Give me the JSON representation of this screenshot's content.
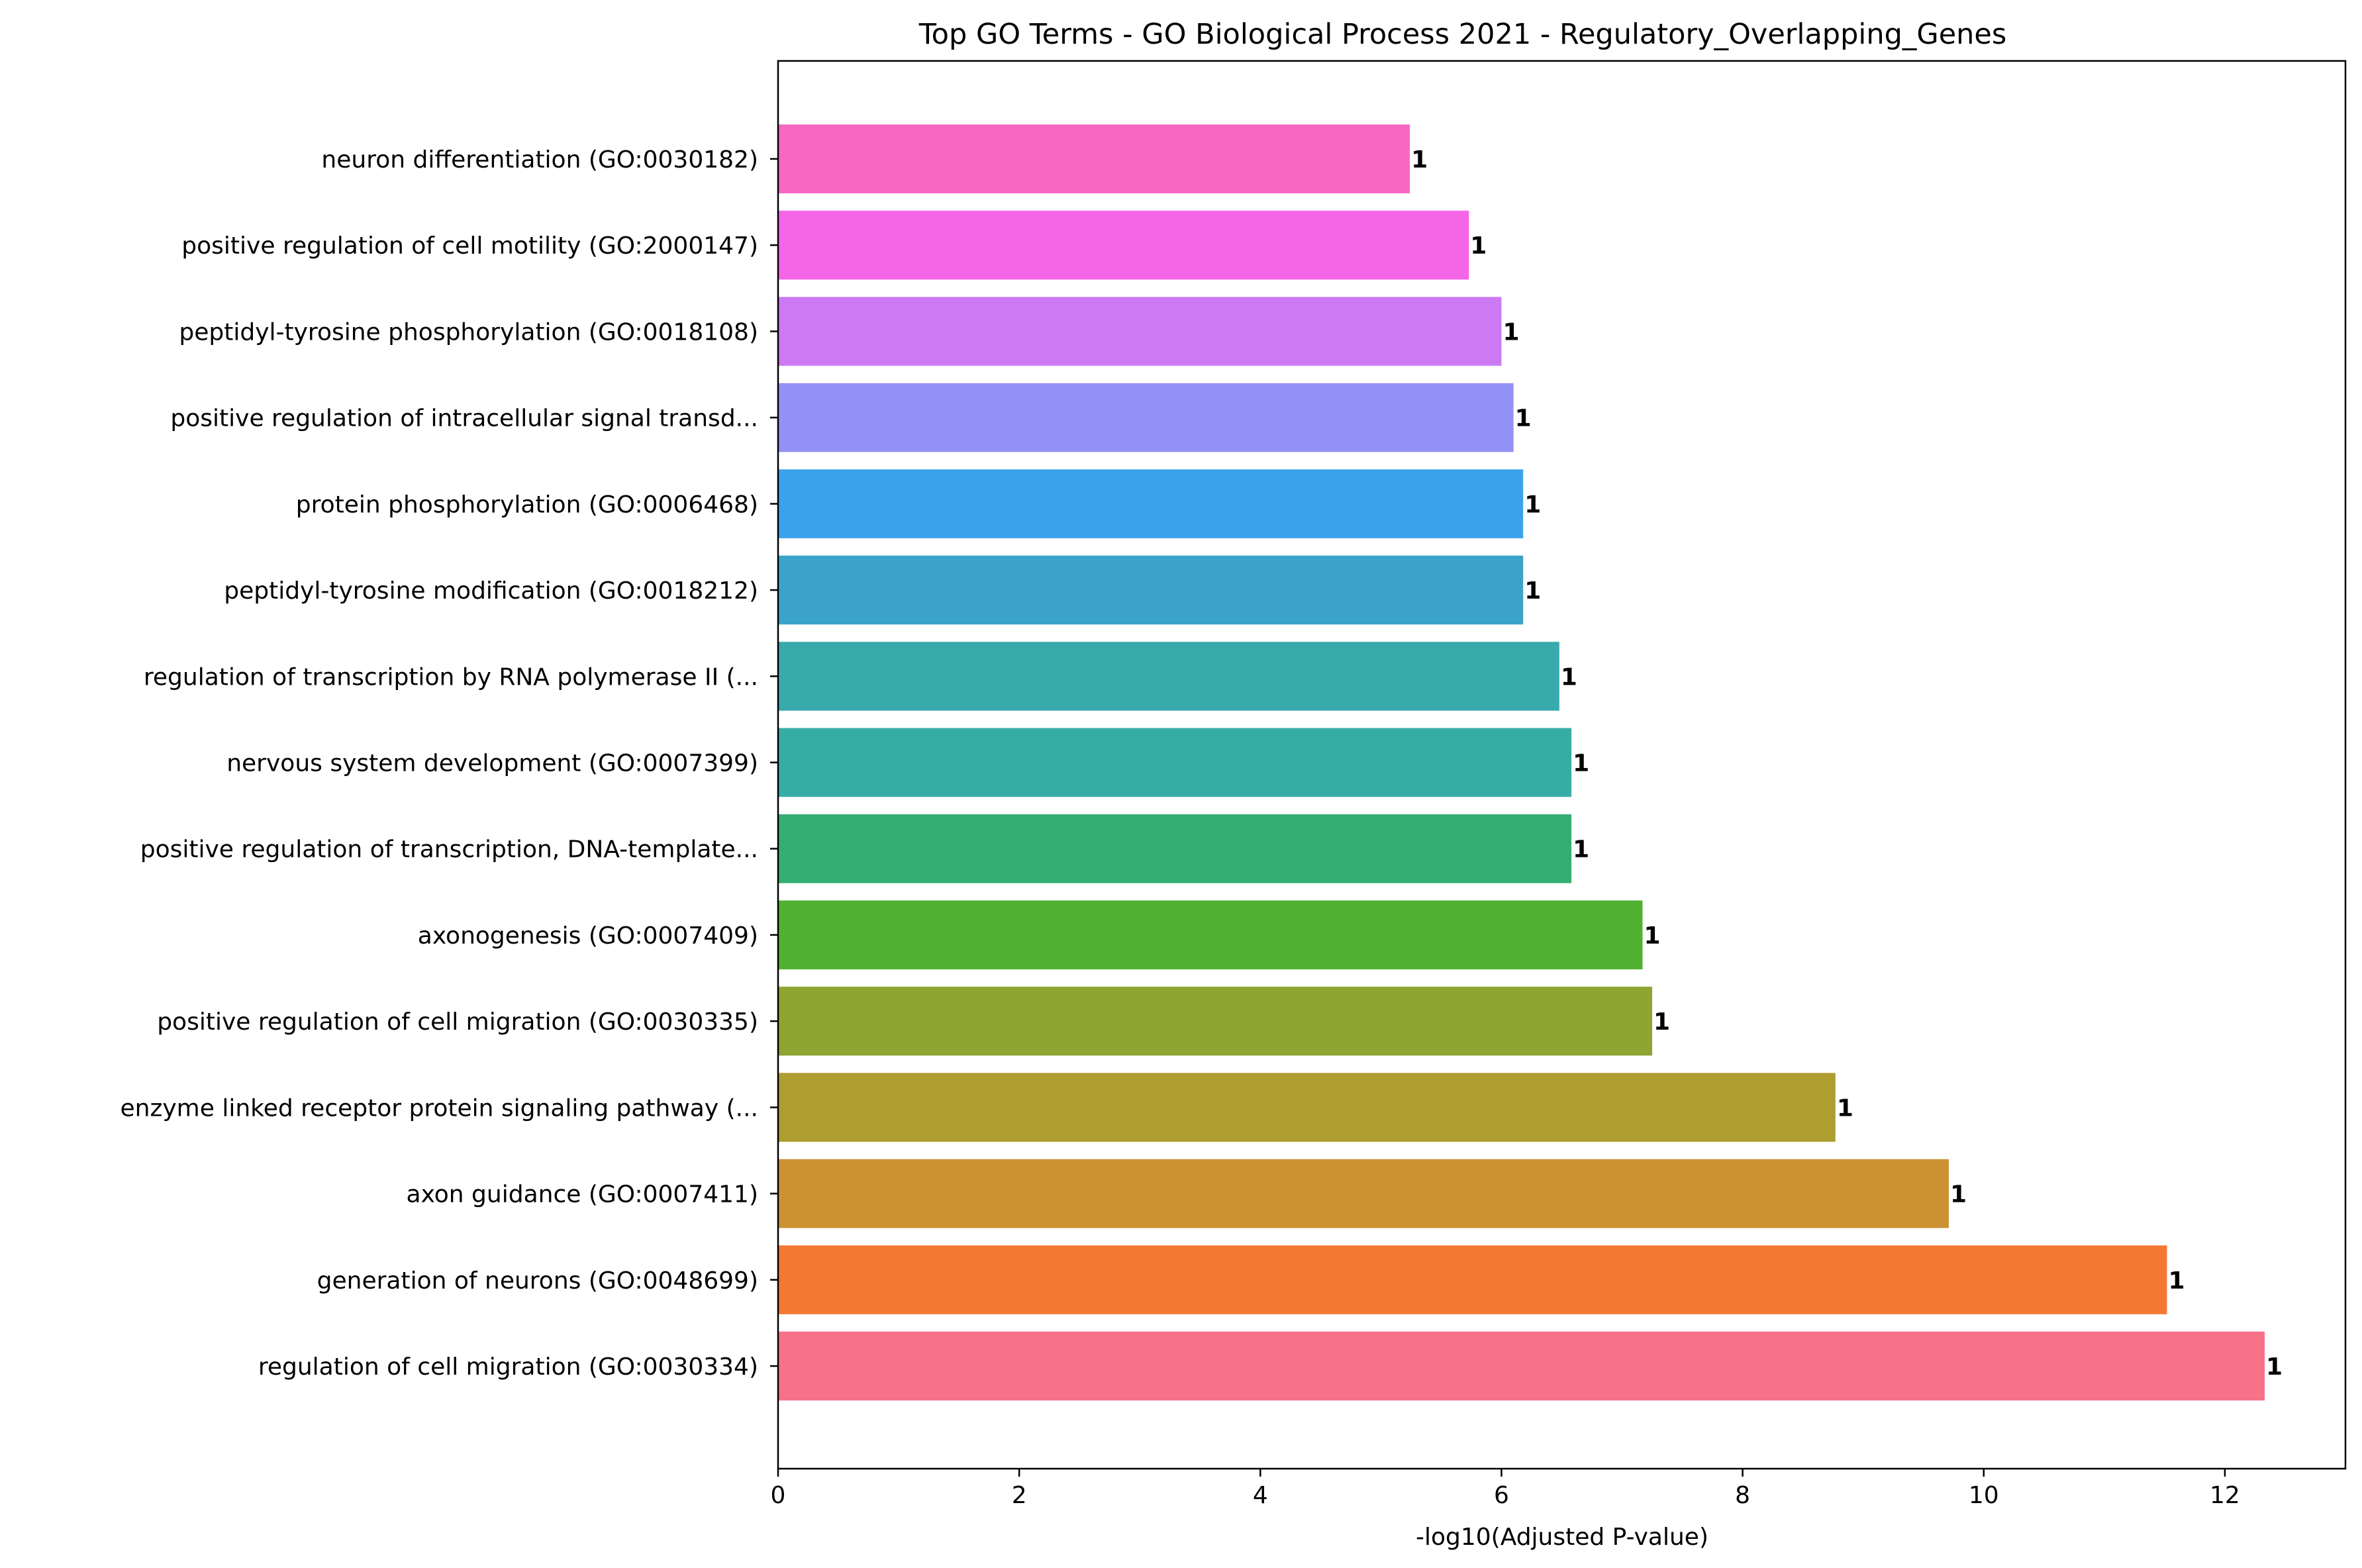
{
  "chart_data": {
    "type": "bar",
    "orientation": "horizontal",
    "title": "Top GO Terms - GO Biological Process 2021 - Regulatory_Overlapping_Genes",
    "xlabel": "-log10(Adjusted P-value)",
    "ylabel": "",
    "xlim": [
      0,
      13
    ],
    "xticks": [
      0,
      2,
      4,
      6,
      8,
      10,
      12
    ],
    "grid": false,
    "categories": [
      "regulation of cell migration (GO:0030334)",
      "generation of neurons (GO:0048699)",
      "axon guidance (GO:0007411)",
      "enzyme linked receptor protein signaling pathway (...",
      "positive regulation of cell migration (GO:0030335)",
      "axonogenesis (GO:0007409)",
      "positive regulation of transcription, DNA-template...",
      "nervous system development (GO:0007399)",
      "regulation of transcription by RNA polymerase II (...",
      "peptidyl-tyrosine modification (GO:0018212)",
      "protein phosphorylation (GO:0006468)",
      "positive regulation of intracellular signal transd...",
      "peptidyl-tyrosine phosphorylation (GO:0018108)",
      "positive regulation of cell motility (GO:2000147)",
      "neuron differentiation (GO:0030182)"
    ],
    "values": [
      12.33,
      11.52,
      9.71,
      8.77,
      7.25,
      7.17,
      6.58,
      6.58,
      6.48,
      6.18,
      6.18,
      6.1,
      6.0,
      5.73,
      5.24
    ],
    "data_labels": [
      "1",
      "1",
      "1",
      "1",
      "1",
      "1",
      "1",
      "1",
      "1",
      "1",
      "1",
      "1",
      "1",
      "1",
      "1"
    ],
    "colors": [
      "#f77189",
      "#f37932",
      "#cb9133",
      "#ae9d31",
      "#8ea531",
      "#50b131",
      "#34ae73",
      "#36ada4",
      "#38aaac",
      "#3ba3ca",
      "#3ba3ec",
      "#9491f6",
      "#cc7af4",
      "#f565e8",
      "#f668c2"
    ]
  }
}
